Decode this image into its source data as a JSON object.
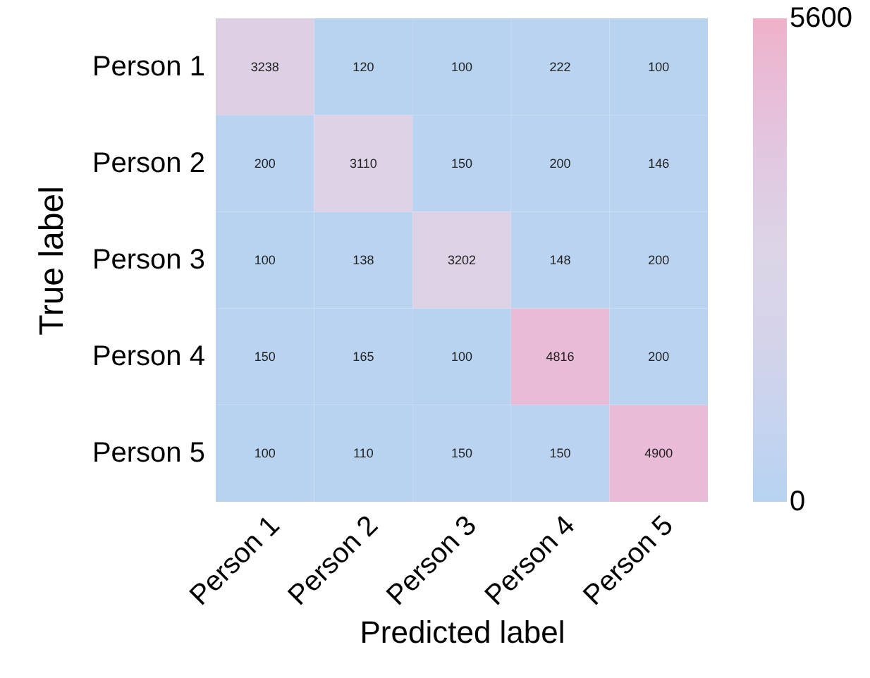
{
  "chart_data": {
    "type": "heatmap",
    "xlabel": "Predicted label",
    "ylabel": "True label",
    "categories": [
      "Person 1",
      "Person 2",
      "Person 3",
      "Person 4",
      "Person 5"
    ],
    "y_categories": [
      "Person 1",
      "Person 2",
      "Person 3",
      "Person 4",
      "Person 5"
    ],
    "cells": [
      [
        3238,
        120,
        100,
        222,
        100
      ],
      [
        200,
        3110,
        150,
        200,
        146
      ],
      [
        100,
        138,
        3202,
        148,
        200
      ],
      [
        150,
        165,
        100,
        4816,
        200
      ],
      [
        100,
        110,
        150,
        150,
        4900
      ]
    ],
    "clim": [
      0,
      5600
    ],
    "cticks": [
      0,
      5600
    ],
    "data_labels": true
  }
}
